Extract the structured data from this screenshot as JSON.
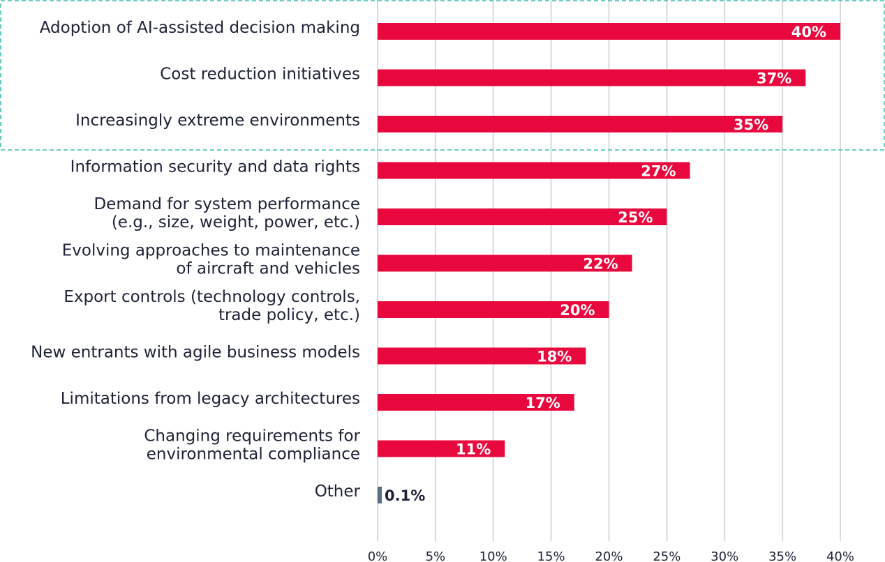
{
  "chart_data": {
    "type": "bar",
    "orientation": "horizontal",
    "categories": [
      [
        "Adoption of AI-assisted decision making"
      ],
      [
        "Cost reduction initiatives"
      ],
      [
        "Increasingly extreme environments"
      ],
      [
        "Information security and data rights"
      ],
      [
        "Demand for system performance",
        "(e.g., size, weight, power, etc.)"
      ],
      [
        "Evolving approaches to maintenance",
        "of aircraft and vehicles"
      ],
      [
        "Export controls (technology controls,",
        "trade policy, etc.)"
      ],
      [
        "New entrants with agile business models"
      ],
      [
        "Limitations from legacy architectures"
      ],
      [
        "Changing requirements for",
        "environmental compliance"
      ],
      [
        "Other"
      ]
    ],
    "values": [
      40,
      37,
      35,
      27,
      25,
      22,
      20,
      18,
      17,
      11,
      0.1
    ],
    "value_labels": [
      "40%",
      "37%",
      "35%",
      "27%",
      "25%",
      "22%",
      "20%",
      "18%",
      "17%",
      "11%",
      "0.1%"
    ],
    "xlim": [
      0,
      40
    ],
    "x_ticks": [
      0,
      5,
      10,
      15,
      20,
      25,
      30,
      35,
      40
    ],
    "x_tick_labels": [
      "0%",
      "5%",
      "10%",
      "15%",
      "20%",
      "25%",
      "30%",
      "35%",
      "40%"
    ],
    "grid": true,
    "highlighted_categories": [
      0,
      1,
      2
    ],
    "colors": {
      "bar": "#e8083e",
      "bar_other": "#5a6e80",
      "grid": "#d9d9d9",
      "highlight_border": "#3fbfad",
      "value_label_on_bar": "#ffffff",
      "value_label_outside": "#1d2236",
      "text": "#1d2236"
    }
  }
}
